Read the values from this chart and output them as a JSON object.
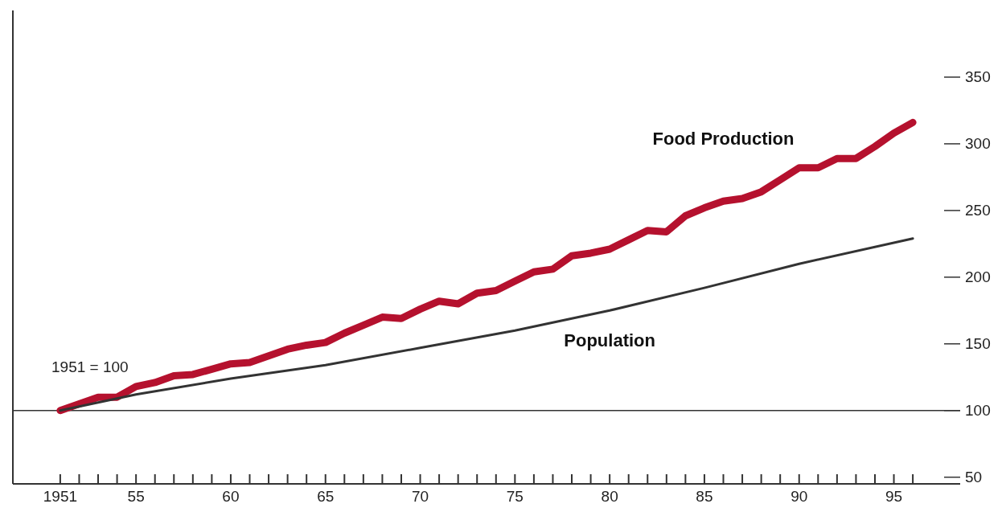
{
  "chart_data": {
    "type": "line",
    "xlim": [
      1948.5,
      1998.5
    ],
    "ylim": [
      45,
      400
    ],
    "xticks": [
      {
        "value": 1951,
        "label": "1951"
      },
      {
        "value": 1952,
        "label": null
      },
      {
        "value": 1953,
        "label": null
      },
      {
        "value": 1954,
        "label": null
      },
      {
        "value": 1955,
        "label": "55"
      },
      {
        "value": 1956,
        "label": null
      },
      {
        "value": 1957,
        "label": null
      },
      {
        "value": 1958,
        "label": null
      },
      {
        "value": 1959,
        "label": null
      },
      {
        "value": 1960,
        "label": "60"
      },
      {
        "value": 1961,
        "label": null
      },
      {
        "value": 1962,
        "label": null
      },
      {
        "value": 1963,
        "label": null
      },
      {
        "value": 1964,
        "label": null
      },
      {
        "value": 1965,
        "label": "65"
      },
      {
        "value": 1966,
        "label": null
      },
      {
        "value": 1967,
        "label": null
      },
      {
        "value": 1968,
        "label": null
      },
      {
        "value": 1969,
        "label": null
      },
      {
        "value": 1970,
        "label": "70"
      },
      {
        "value": 1971,
        "label": null
      },
      {
        "value": 1972,
        "label": null
      },
      {
        "value": 1973,
        "label": null
      },
      {
        "value": 1974,
        "label": null
      },
      {
        "value": 1975,
        "label": "75"
      },
      {
        "value": 1976,
        "label": null
      },
      {
        "value": 1977,
        "label": null
      },
      {
        "value": 1978,
        "label": null
      },
      {
        "value": 1979,
        "label": null
      },
      {
        "value": 1980,
        "label": "80"
      },
      {
        "value": 1981,
        "label": null
      },
      {
        "value": 1982,
        "label": null
      },
      {
        "value": 1983,
        "label": null
      },
      {
        "value": 1984,
        "label": null
      },
      {
        "value": 1985,
        "label": "85"
      },
      {
        "value": 1986,
        "label": null
      },
      {
        "value": 1987,
        "label": null
      },
      {
        "value": 1988,
        "label": null
      },
      {
        "value": 1989,
        "label": null
      },
      {
        "value": 1990,
        "label": "90"
      },
      {
        "value": 1991,
        "label": null
      },
      {
        "value": 1992,
        "label": null
      },
      {
        "value": 1993,
        "label": null
      },
      {
        "value": 1994,
        "label": null
      },
      {
        "value": 1995,
        "label": "95"
      },
      {
        "value": 1996,
        "label": null
      }
    ],
    "yticks": [
      50,
      100,
      150,
      200,
      250,
      300,
      350
    ],
    "grid": false,
    "legend": false,
    "marker": "none",
    "line_style": "solid",
    "ref_lines": [
      {
        "axis": "y",
        "value": 100,
        "label": "1951 = 100",
        "color": "#333333"
      }
    ],
    "series": [
      {
        "name": "Food Production",
        "color": "#b5112e",
        "x": [
          1951,
          1952,
          1953,
          1954,
          1955,
          1956,
          1957,
          1958,
          1959,
          1960,
          1961,
          1962,
          1963,
          1964,
          1965,
          1966,
          1967,
          1968,
          1969,
          1970,
          1971,
          1972,
          1973,
          1974,
          1975,
          1976,
          1977,
          1978,
          1979,
          1980,
          1981,
          1982,
          1983,
          1984,
          1985,
          1986,
          1987,
          1988,
          1989,
          1990,
          1991,
          1992,
          1993,
          1994,
          1995,
          1996
        ],
        "values": [
          100,
          105,
          110,
          110,
          118,
          121,
          126,
          127,
          131,
          135,
          136,
          141,
          146,
          149,
          151,
          158,
          164,
          170,
          169,
          176,
          182,
          180,
          188,
          190,
          197,
          204,
          206,
          216,
          218,
          221,
          228,
          235,
          234,
          246,
          252,
          257,
          259,
          264,
          273,
          282,
          282,
          289,
          289,
          298,
          308,
          316
        ]
      },
      {
        "name": "Population",
        "color": "#333333",
        "x": [
          1951,
          1955,
          1960,
          1965,
          1970,
          1975,
          1980,
          1985,
          1990,
          1996
        ],
        "values": [
          100,
          112,
          124,
          134,
          147,
          160,
          175,
          192,
          210,
          229
        ]
      }
    ]
  }
}
